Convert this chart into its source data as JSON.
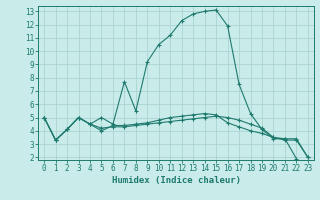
{
  "xlabel": "Humidex (Indice chaleur)",
  "bg_color": "#c9ecea",
  "grid_color": "#aad4d0",
  "line_color": "#1e7a6e",
  "xlim": [
    -0.5,
    23.5
  ],
  "ylim": [
    1.8,
    13.4
  ],
  "xticks": [
    0,
    1,
    2,
    3,
    4,
    5,
    6,
    7,
    8,
    9,
    10,
    11,
    12,
    13,
    14,
    15,
    16,
    17,
    18,
    19,
    20,
    21,
    22,
    23
  ],
  "yticks": [
    2,
    3,
    4,
    5,
    6,
    7,
    8,
    9,
    10,
    11,
    12,
    13
  ],
  "line1_x": [
    0,
    1,
    2,
    3,
    4,
    5,
    6,
    7,
    8,
    9,
    10,
    11,
    12,
    13,
    14,
    15,
    16,
    17,
    18,
    19,
    20,
    21,
    22
  ],
  "line1_y": [
    5.0,
    3.3,
    4.1,
    5.0,
    4.5,
    5.0,
    4.5,
    7.7,
    5.5,
    9.2,
    10.5,
    11.2,
    12.3,
    12.8,
    13.0,
    13.1,
    11.9,
    7.5,
    5.3,
    4.1,
    3.4,
    3.4,
    1.9
  ],
  "line2_x": [
    0,
    1,
    2,
    3,
    4,
    5,
    6,
    7,
    8,
    9,
    10,
    11,
    12,
    13,
    14,
    15,
    16,
    17,
    18,
    19,
    20,
    21,
    22,
    23
  ],
  "line2_y": [
    5.0,
    3.3,
    4.1,
    5.0,
    4.5,
    4.2,
    4.3,
    4.3,
    4.4,
    4.5,
    4.6,
    4.7,
    4.8,
    4.9,
    5.0,
    5.1,
    5.0,
    4.8,
    4.5,
    4.2,
    3.5,
    3.3,
    3.3,
    2.0
  ],
  "line3_x": [
    0,
    1,
    2,
    3,
    4,
    5,
    6,
    7,
    8,
    9,
    10,
    11,
    12,
    13,
    14,
    15,
    16,
    17,
    18,
    19,
    20,
    21,
    22,
    23
  ],
  "line3_y": [
    5.0,
    3.3,
    4.1,
    5.0,
    4.5,
    4.0,
    4.4,
    4.4,
    4.5,
    4.6,
    4.8,
    5.0,
    5.1,
    5.2,
    5.3,
    5.2,
    4.6,
    4.3,
    4.0,
    3.8,
    3.5,
    3.4,
    3.4,
    2.0
  ]
}
